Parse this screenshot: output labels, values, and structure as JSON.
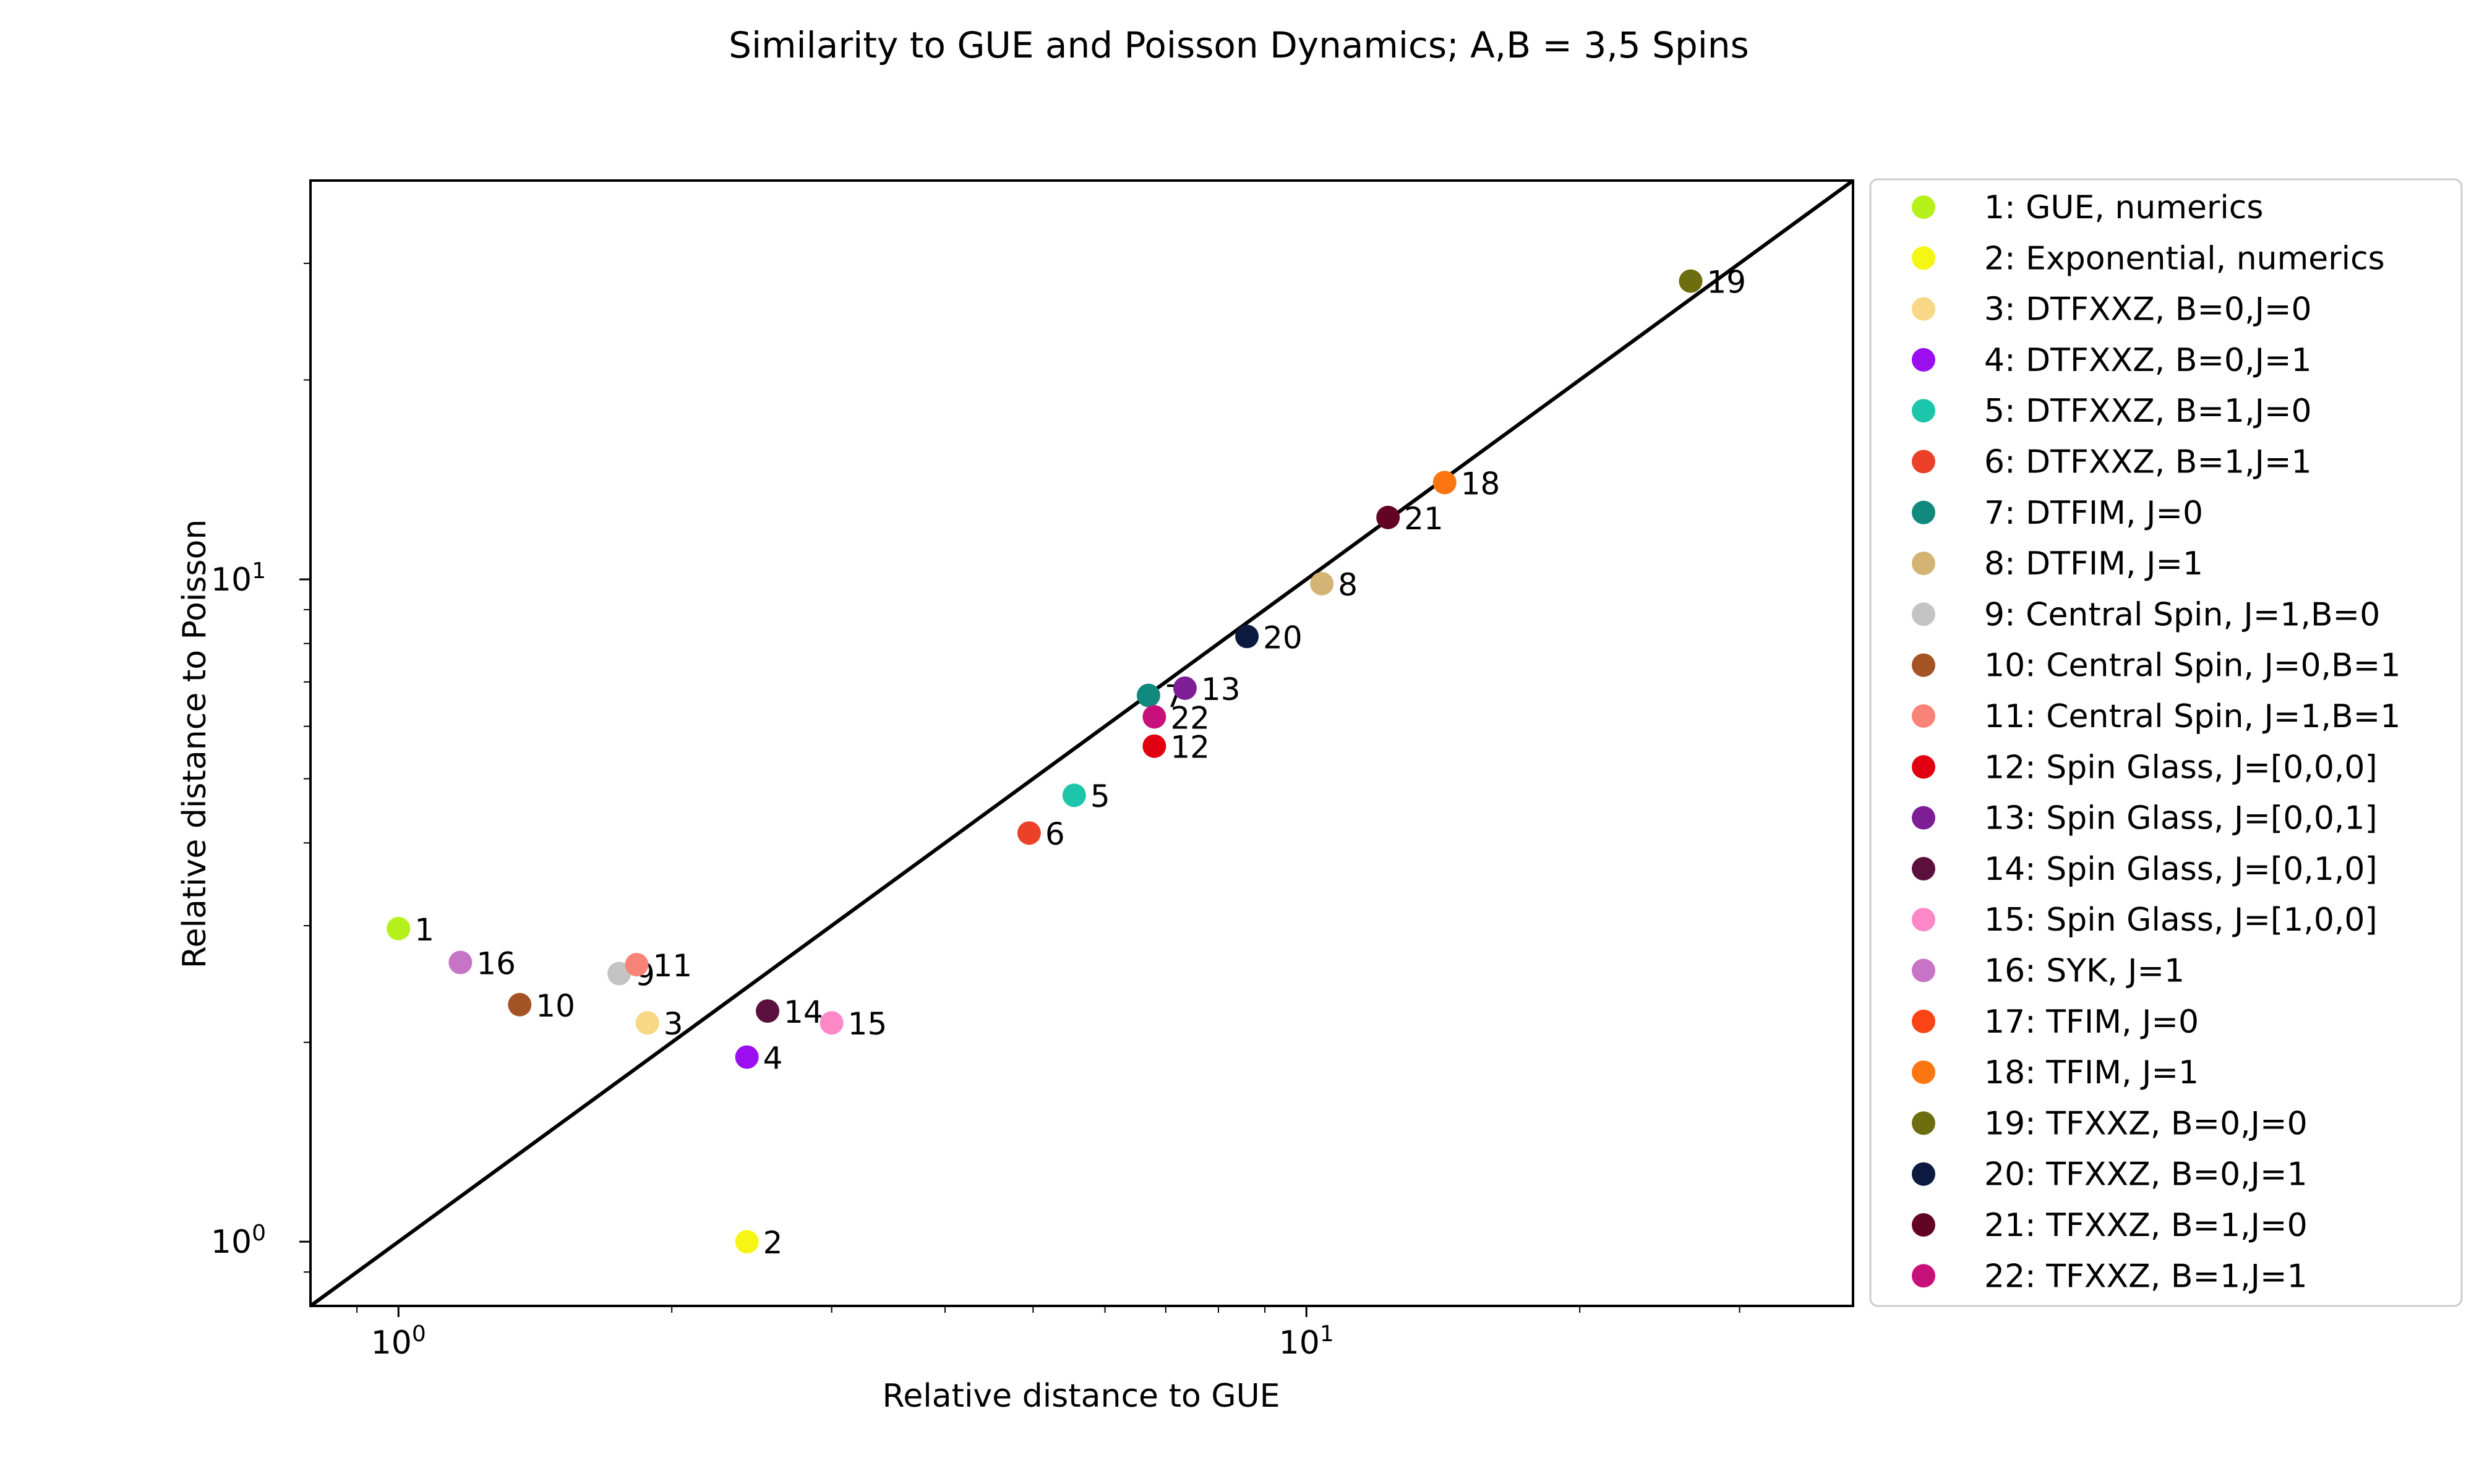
{
  "chart_data": {
    "type": "scatter",
    "title": "Similarity to GUE and Poisson Dynamics; A,B = 3,5 Spins",
    "xlabel": "Relative distance to GUE",
    "ylabel": "Relative distance to Poisson",
    "xscale": "log",
    "yscale": "log",
    "xlim": [
      0.8,
      40
    ],
    "ylim": [
      0.8,
      40
    ],
    "xticks": [
      {
        "value": 1,
        "base": "10",
        "exp": "0"
      },
      {
        "value": 10,
        "base": "10",
        "exp": "1"
      }
    ],
    "yticks": [
      {
        "value": 1,
        "base": "10",
        "exp": "0"
      },
      {
        "value": 10,
        "base": "10",
        "exp": "1"
      }
    ],
    "reference_line": "y = x",
    "legend_position": "outside-right",
    "points": [
      {
        "id": "1",
        "label": "1: GUE, numerics",
        "x": 1.0,
        "y": 2.97,
        "color": "#b6f01a"
      },
      {
        "id": "2",
        "label": "2: Exponential, numerics",
        "x": 2.42,
        "y": 1.0,
        "color": "#f6f615"
      },
      {
        "id": "3",
        "label": "3: DTFXXZ, B=0,J=0",
        "x": 1.88,
        "y": 2.14,
        "color": "#f8d886"
      },
      {
        "id": "4",
        "label": "4: DTFXXZ, B=0,J=1",
        "x": 2.42,
        "y": 1.9,
        "color": "#9a0ef0"
      },
      {
        "id": "5",
        "label": "5: DTFXXZ, B=1,J=0",
        "x": 5.55,
        "y": 4.72,
        "color": "#1cc6aa"
      },
      {
        "id": "6",
        "label": "6: DTFXXZ, B=1,J=1",
        "x": 4.95,
        "y": 4.14,
        "color": "#ea4128"
      },
      {
        "id": "7",
        "label": "7: DTFIM, J=0",
        "x": 6.7,
        "y": 6.68,
        "color": "#12897f"
      },
      {
        "id": "8",
        "label": "8: DTFIM, J=1",
        "x": 10.4,
        "y": 9.85,
        "color": "#d3b474"
      },
      {
        "id": "9",
        "label": "9: Central Spin, J=1,B=0",
        "x": 1.75,
        "y": 2.54,
        "color": "#c4c4c4"
      },
      {
        "id": "10",
        "label": "10: Central Spin, J=0,B=1",
        "x": 1.36,
        "y": 2.28,
        "color": "#a45324"
      },
      {
        "id": "11",
        "label": "11: Central Spin, J=1,B=1",
        "x": 1.83,
        "y": 2.62,
        "color": "#f98376"
      },
      {
        "id": "12",
        "label": "12: Spin Glass, J=[0,0,0]",
        "x": 6.8,
        "y": 5.6,
        "color": "#e00010"
      },
      {
        "id": "13",
        "label": "13: Spin Glass, J=[0,0,1]",
        "x": 7.35,
        "y": 6.85,
        "color": "#7d1e97"
      },
      {
        "id": "14",
        "label": "14: Spin Glass, J=[0,1,0]",
        "x": 2.55,
        "y": 2.23,
        "color": "#5b103d"
      },
      {
        "id": "15",
        "label": "15: Spin Glass, J=[1,0,0]",
        "x": 3.0,
        "y": 2.14,
        "color": "#fc88c8"
      },
      {
        "id": "16",
        "label": "16: SYK, J=1",
        "x": 1.17,
        "y": 2.64,
        "color": "#c773c6"
      },
      {
        "id": "17",
        "label": "17: TFIM, J=0",
        "x": null,
        "y": null,
        "color": "#fb4314"
      },
      {
        "id": "18",
        "label": "18: TFIM, J=1",
        "x": 14.2,
        "y": 14.0,
        "color": "#fb7510"
      },
      {
        "id": "19",
        "label": "19: TFXXZ, B=0,J=0",
        "x": 26.5,
        "y": 28.2,
        "color": "#6d6e10"
      },
      {
        "id": "20",
        "label": "20: TFXXZ, B=0,J=1",
        "x": 8.6,
        "y": 8.2,
        "color": "#0c1a40"
      },
      {
        "id": "21",
        "label": "21: TFXXZ, B=1,J=0",
        "x": 12.3,
        "y": 12.4,
        "color": "#640424"
      },
      {
        "id": "22",
        "label": "22: TFXXZ, B=1,J=1",
        "x": 6.8,
        "y": 6.2,
        "color": "#c8107a"
      }
    ]
  }
}
